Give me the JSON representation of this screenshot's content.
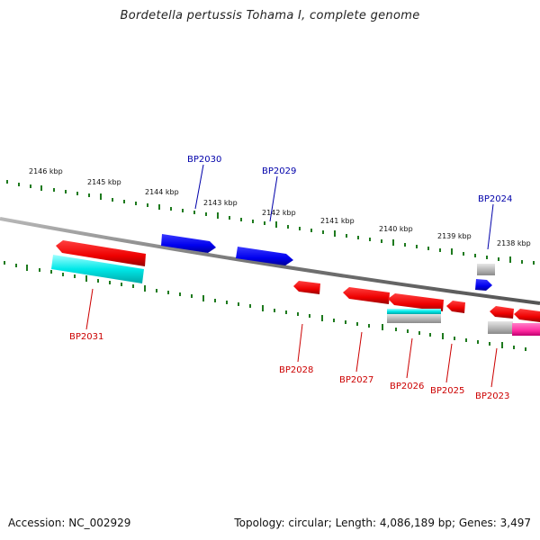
{
  "title": "Bordetella pertussis Tohama I, complete genome",
  "footer": {
    "accession": "Accession: NC_002929",
    "summary": "Topology: circular; Length: 4,086,189 bp; Genes: 3,497"
  },
  "colors": {
    "backbone": "#808080",
    "ticks": "#1e7a1e",
    "forward_gene": "#0000ee",
    "reverse_gene": "#ee0000",
    "cds_cyan": "#00e5e5",
    "cds_magenta": "#ff33aa",
    "pseudo_gray": "#b4b4b4",
    "label_forward": "#0000aa",
    "label_reverse": "#cc0000"
  },
  "scale_labels": [
    "2146 kbp",
    "2145 kbp",
    "2144 kbp",
    "2143 kbp",
    "2142 kbp",
    "2141 kbp",
    "2140 kbp",
    "2139 kbp",
    "2138 kbp"
  ],
  "forward_labels": [
    "BP2030",
    "BP2029",
    "BP2024"
  ],
  "reverse_labels": [
    "BP2031",
    "BP2028",
    "BP2027",
    "BP2026",
    "BP2025",
    "BP2023"
  ]
}
